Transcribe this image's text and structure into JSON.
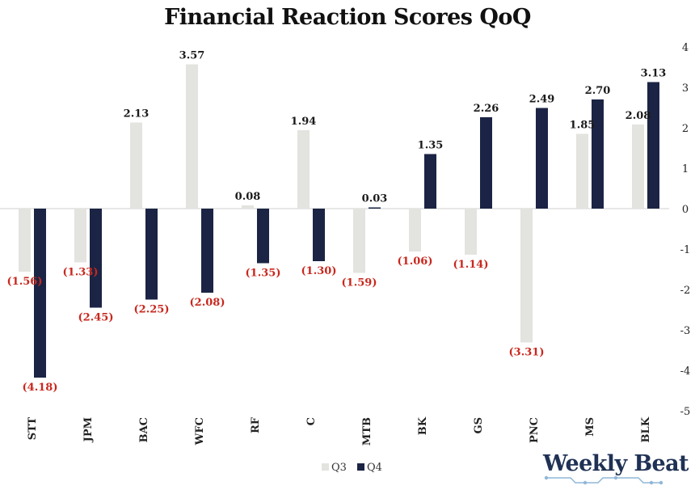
{
  "logo": {
    "text": "Weekly Beat",
    "color": "#1f3154"
  },
  "chart_data": {
    "type": "bar",
    "title": "Financial Reaction Scores QoQ",
    "categories": [
      "STT",
      "JPM",
      "BAC",
      "WFC",
      "RF",
      "C",
      "MTB",
      "BK",
      "GS",
      "PNC",
      "MS",
      "BLK"
    ],
    "series": [
      {
        "name": "Q3",
        "color": "#e3e3df",
        "values": [
          -1.56,
          -1.33,
          2.13,
          3.57,
          0.08,
          1.94,
          -1.59,
          -1.06,
          -1.14,
          -3.31,
          1.85,
          2.08
        ],
        "labels": [
          "(1.56)",
          "(1.33)",
          "2.13",
          "3.57",
          "0.08",
          "1.94",
          "(1.59)",
          "(1.06)",
          "(1.14)",
          "(3.31)",
          "1.85",
          "2.08"
        ]
      },
      {
        "name": "Q4",
        "color": "#1b2444",
        "values": [
          -4.18,
          -2.45,
          -2.25,
          -2.08,
          -1.35,
          -1.3,
          0.03,
          1.35,
          2.26,
          2.49,
          2.7,
          3.13
        ],
        "labels": [
          "(4.18)",
          "(2.45)",
          "(2.25)",
          "(2.08)",
          "(1.35)",
          "(1.30)",
          "0.03",
          "1.35",
          "2.26",
          "2.49",
          "2.70",
          "3.13"
        ]
      }
    ],
    "ylim": [
      -5,
      4
    ],
    "yticks": [
      "4",
      "3",
      "2",
      "1",
      "0",
      "-1",
      "-2",
      "-3",
      "-4",
      "-5"
    ],
    "yaxis_side": "right",
    "grid": false,
    "legend_position": "bottom-center",
    "positive_label_color": "#1a1a1a",
    "negative_label_color": "#c8281e"
  }
}
